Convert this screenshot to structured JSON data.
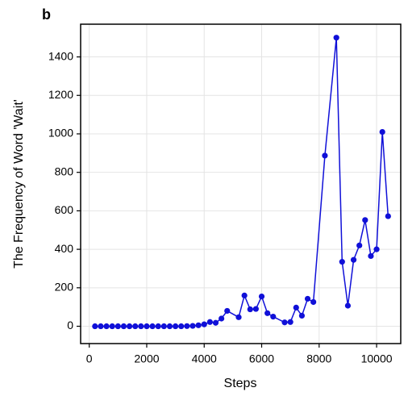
{
  "chart_data": {
    "type": "line",
    "panel_label": "b",
    "xlabel": "Steps",
    "ylabel": "The Frequency of Word 'Wait'",
    "x": [
      200,
      400,
      600,
      800,
      1000,
      1200,
      1400,
      1600,
      1800,
      2000,
      2200,
      2400,
      2600,
      2800,
      3000,
      3200,
      3400,
      3600,
      3800,
      4000,
      4200,
      4400,
      4600,
      4800,
      5200,
      5400,
      5600,
      5800,
      6000,
      6200,
      6400,
      6800,
      7000,
      7200,
      7400,
      7600,
      7800,
      8200,
      8600,
      8800,
      9000,
      9200,
      9400,
      9600,
      9800,
      10000,
      10200,
      10400
    ],
    "series": [
      {
        "name": "Wait",
        "color": "#1010d8",
        "values": [
          0,
          0,
          0,
          0,
          0,
          0,
          0,
          0,
          0,
          0,
          0,
          0,
          0,
          0,
          0,
          0,
          1,
          2,
          5,
          10,
          22,
          18,
          40,
          80,
          47,
          160,
          88,
          90,
          155,
          68,
          50,
          20,
          22,
          97,
          55,
          143,
          126,
          887,
          1500,
          335,
          107,
          345,
          420,
          552,
          365,
          400,
          1010,
          572
        ]
      }
    ],
    "xlim": [
      -300,
      10840
    ],
    "ylim": [
      -90,
      1570
    ],
    "xticks": [
      0,
      2000,
      4000,
      6000,
      8000,
      10000
    ],
    "yticks": [
      0,
      200,
      400,
      600,
      800,
      1000,
      1200,
      1400
    ],
    "grid": true
  }
}
